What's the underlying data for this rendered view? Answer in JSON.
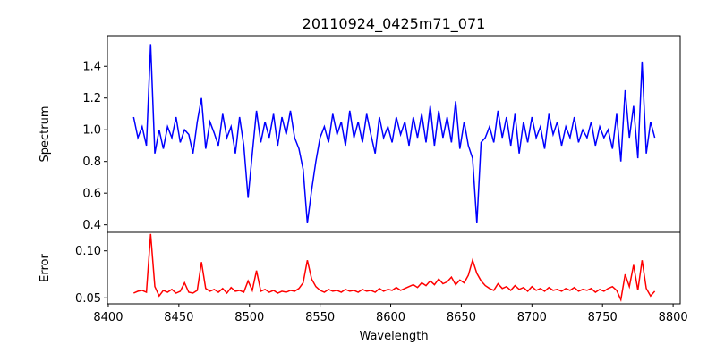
{
  "chart_data": [
    {
      "type": "line",
      "title": "20110924_0425m71_071",
      "ylabel": "Spectrum",
      "xlabel": "",
      "color": "#0000ff",
      "xlim": [
        8399.4,
        8805
      ],
      "ylim": [
        0.353,
        1.593
      ],
      "yticks": [
        0.4,
        0.6,
        0.8,
        1.0,
        1.2,
        1.4
      ],
      "ytick_labels": [
        "0.4",
        "0.6",
        "0.8",
        "1.0",
        "1.2",
        "1.4"
      ],
      "x_start": 8418,
      "x_step": 3,
      "values": [
        1.08,
        0.95,
        1.02,
        0.9,
        1.54,
        0.85,
        1.0,
        0.88,
        1.02,
        0.95,
        1.08,
        0.92,
        1.0,
        0.97,
        0.85,
        1.05,
        1.2,
        0.88,
        1.05,
        0.98,
        0.9,
        1.1,
        0.95,
        1.02,
        0.85,
        1.08,
        0.9,
        0.57,
        0.85,
        1.12,
        0.92,
        1.05,
        0.95,
        1.1,
        0.9,
        1.08,
        0.97,
        1.12,
        0.95,
        0.88,
        0.75,
        0.41,
        0.62,
        0.8,
        0.95,
        1.02,
        0.92,
        1.1,
        0.97,
        1.05,
        0.9,
        1.12,
        0.95,
        1.05,
        0.92,
        1.1,
        0.97,
        0.85,
        1.08,
        0.95,
        1.02,
        0.92,
        1.08,
        0.97,
        1.05,
        0.9,
        1.08,
        0.95,
        1.1,
        0.92,
        1.15,
        0.9,
        1.12,
        0.95,
        1.08,
        0.92,
        1.18,
        0.88,
        1.05,
        0.9,
        0.82,
        0.41,
        0.92,
        0.95,
        1.02,
        0.92,
        1.12,
        0.95,
        1.08,
        0.9,
        1.1,
        0.85,
        1.05,
        0.92,
        1.08,
        0.95,
        1.02,
        0.88,
        1.1,
        0.97,
        1.05,
        0.9,
        1.02,
        0.95,
        1.08,
        0.92,
        1.0,
        0.95,
        1.05,
        0.9,
        1.02,
        0.95,
        1.0,
        0.88,
        1.1,
        0.8,
        1.25,
        0.95,
        1.15,
        0.82,
        1.43,
        0.85,
        1.05,
        0.95
      ]
    },
    {
      "type": "line",
      "title": "",
      "ylabel": "Error",
      "xlabel": "Wavelength",
      "color": "#ff0000",
      "xlim": [
        8399.4,
        8805
      ],
      "ylim": [
        0.0436,
        0.1197
      ],
      "yticks": [
        0.05,
        0.1
      ],
      "ytick_labels": [
        "0.05",
        "0.10"
      ],
      "xticks": [
        8400,
        8450,
        8500,
        8550,
        8600,
        8650,
        8700,
        8750,
        8800
      ],
      "xtick_labels": [
        "8400",
        "8450",
        "8500",
        "8550",
        "8600",
        "8650",
        "8700",
        "8750",
        "8800"
      ],
      "x_start": 8418,
      "x_step": 3,
      "values": [
        0.055,
        0.057,
        0.058,
        0.056,
        0.118,
        0.062,
        0.052,
        0.058,
        0.056,
        0.059,
        0.055,
        0.057,
        0.066,
        0.056,
        0.055,
        0.058,
        0.088,
        0.06,
        0.057,
        0.059,
        0.056,
        0.06,
        0.055,
        0.061,
        0.057,
        0.058,
        0.056,
        0.068,
        0.058,
        0.079,
        0.057,
        0.059,
        0.056,
        0.058,
        0.055,
        0.057,
        0.056,
        0.058,
        0.057,
        0.06,
        0.066,
        0.09,
        0.07,
        0.062,
        0.058,
        0.056,
        0.059,
        0.057,
        0.058,
        0.056,
        0.059,
        0.057,
        0.058,
        0.056,
        0.059,
        0.057,
        0.058,
        0.056,
        0.06,
        0.057,
        0.059,
        0.058,
        0.061,
        0.058,
        0.06,
        0.062,
        0.064,
        0.061,
        0.066,
        0.063,
        0.068,
        0.064,
        0.07,
        0.065,
        0.067,
        0.072,
        0.064,
        0.069,
        0.066,
        0.074,
        0.09,
        0.076,
        0.068,
        0.063,
        0.06,
        0.058,
        0.065,
        0.06,
        0.062,
        0.058,
        0.063,
        0.059,
        0.061,
        0.057,
        0.062,
        0.058,
        0.06,
        0.057,
        0.061,
        0.058,
        0.059,
        0.057,
        0.06,
        0.058,
        0.061,
        0.057,
        0.059,
        0.058,
        0.06,
        0.056,
        0.059,
        0.057,
        0.06,
        0.062,
        0.058,
        0.048,
        0.075,
        0.062,
        0.085,
        0.058,
        0.09,
        0.06,
        0.052,
        0.057
      ]
    }
  ]
}
